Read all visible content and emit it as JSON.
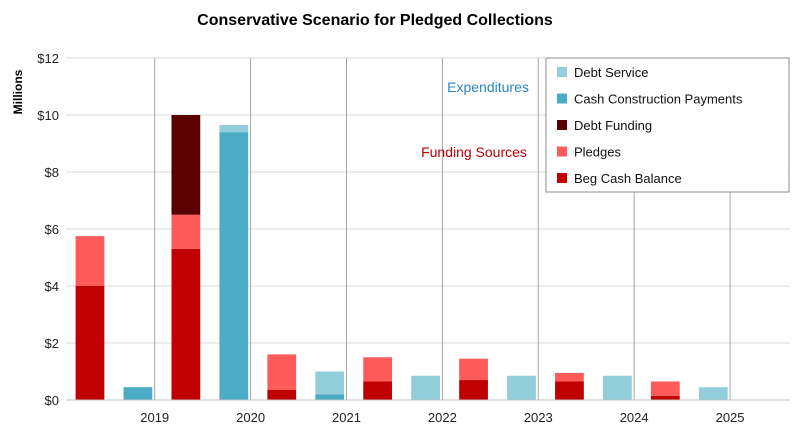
{
  "chart_data": {
    "type": "bar",
    "title": "Conservative Scenario for Pledged Collections",
    "ylabel": "Millions",
    "ylim": [
      0,
      12
    ],
    "y_ticks": [
      "$0",
      "$2",
      "$4",
      "$6",
      "$8",
      "$10",
      "$12"
    ],
    "year_labels": [
      "2019",
      "2020",
      "2021",
      "2022",
      "2023",
      "2024",
      "2025"
    ],
    "annotations": [
      {
        "text": "Expenditures",
        "color": "#2E86C1"
      },
      {
        "text": "Funding Sources",
        "color": "#C00000"
      }
    ],
    "legend_position": "top-right",
    "legend": [
      {
        "name": "Debt Service",
        "color": "#92CDDC"
      },
      {
        "name": "Cash Construction Payments",
        "color": "#4BACC6"
      },
      {
        "name": "Debt Funding",
        "color": "#5A0000"
      },
      {
        "name": "Pledges",
        "color": "#FF5B5B"
      },
      {
        "name": "Beg Cash Balance",
        "color": "#C00000"
      }
    ],
    "bars": [
      {
        "group": "funding",
        "segments": [
          {
            "series": "Beg Cash Balance",
            "value": 4.0
          },
          {
            "series": "Pledges",
            "value": 1.75
          }
        ]
      },
      {
        "group": "expenditures",
        "segments": [
          {
            "series": "Cash Construction Payments",
            "value": 0.45
          }
        ]
      },
      {
        "group": "funding",
        "segments": [
          {
            "series": "Beg Cash Balance",
            "value": 5.3
          },
          {
            "series": "Pledges",
            "value": 1.2
          },
          {
            "series": "Debt Funding",
            "value": 3.5
          }
        ]
      },
      {
        "group": "expenditures",
        "segments": [
          {
            "series": "Cash Construction Payments",
            "value": 9.4
          },
          {
            "series": "Debt Service",
            "value": 0.25
          }
        ]
      },
      {
        "group": "funding",
        "segments": [
          {
            "series": "Beg Cash Balance",
            "value": 0.35
          },
          {
            "series": "Pledges",
            "value": 1.25
          }
        ]
      },
      {
        "group": "expenditures",
        "segments": [
          {
            "series": "Cash Construction Payments",
            "value": 0.2
          },
          {
            "series": "Debt Service",
            "value": 0.8
          }
        ]
      },
      {
        "group": "funding",
        "segments": [
          {
            "series": "Beg Cash Balance",
            "value": 0.65
          },
          {
            "series": "Pledges",
            "value": 0.85
          }
        ]
      },
      {
        "group": "expenditures",
        "segments": [
          {
            "series": "Debt Service",
            "value": 0.85
          }
        ]
      },
      {
        "group": "funding",
        "segments": [
          {
            "series": "Beg Cash Balance",
            "value": 0.7
          },
          {
            "series": "Pledges",
            "value": 0.75
          }
        ]
      },
      {
        "group": "expenditures",
        "segments": [
          {
            "series": "Debt Service",
            "value": 0.85
          }
        ]
      },
      {
        "group": "funding",
        "segments": [
          {
            "series": "Beg Cash Balance",
            "value": 0.65
          },
          {
            "series": "Pledges",
            "value": 0.3
          }
        ]
      },
      {
        "group": "expenditures",
        "segments": [
          {
            "series": "Debt Service",
            "value": 0.85
          }
        ]
      },
      {
        "group": "funding",
        "segments": [
          {
            "series": "Beg Cash Balance",
            "value": 0.15
          },
          {
            "series": "Pledges",
            "value": 0.5
          }
        ]
      },
      {
        "group": "expenditures",
        "segments": [
          {
            "series": "Debt Service",
            "value": 0.45
          }
        ]
      }
    ]
  }
}
